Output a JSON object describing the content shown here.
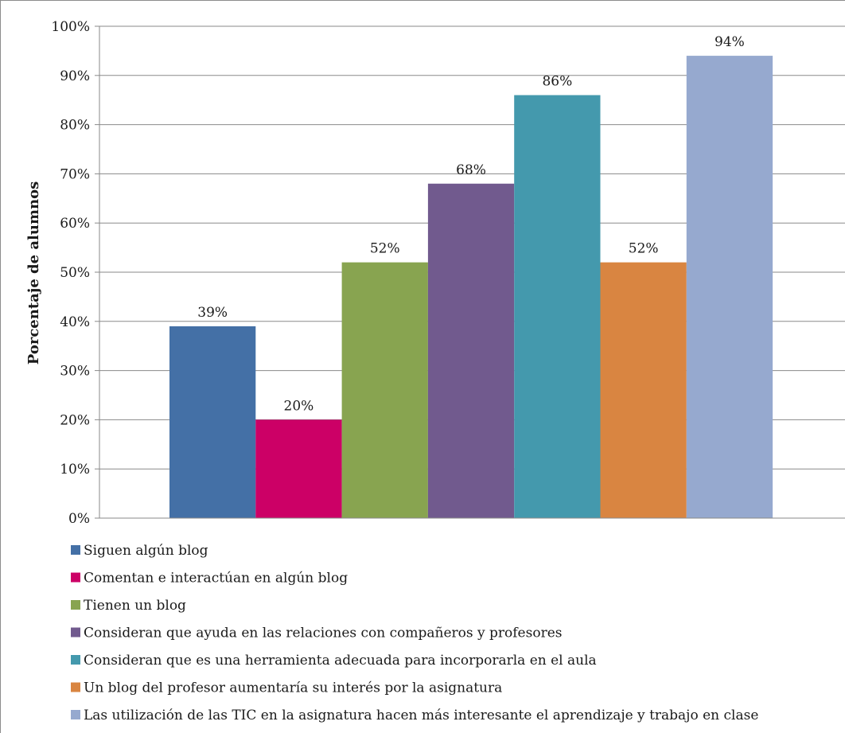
{
  "chart_data": {
    "type": "bar",
    "title": "",
    "xlabel": "",
    "ylabel": "Porcentaje de alumnos",
    "ylim": [
      0,
      100
    ],
    "yticks": [
      "0%",
      "10%",
      "20%",
      "30%",
      "40%",
      "50%",
      "60%",
      "70%",
      "80%",
      "90%",
      "100%"
    ],
    "grid": true,
    "legend_position": "bottom",
    "series": [
      {
        "name": "Siguen algún blog",
        "value": 39,
        "label": "39%",
        "color": "#4470a6"
      },
      {
        "name": "Comentan e interactúan en algún blog",
        "value": 20,
        "label": "20%",
        "color": "#cc0066"
      },
      {
        "name": "Tienen un blog",
        "value": 52,
        "label": "52%",
        "color": "#88a450"
      },
      {
        "name": "Consideran que ayuda en las relaciones con compañeros y profesores",
        "value": 68,
        "label": "68%",
        "color": "#715a8e"
      },
      {
        "name": "Consideran que es una herramienta adecuada para incorporarla en el aula",
        "value": 86,
        "label": "86%",
        "color": "#4499ad"
      },
      {
        "name": "Un blog del profesor aumentaría su interés por la asignatura",
        "value": 52,
        "label": "52%",
        "color": "#d98541"
      },
      {
        "name": "Las utilización de las TIC en la asignatura hacen más interesante el aprendizaje y trabajo en clase",
        "value": 94,
        "label": "94%",
        "color": "#96a9cf"
      }
    ]
  }
}
